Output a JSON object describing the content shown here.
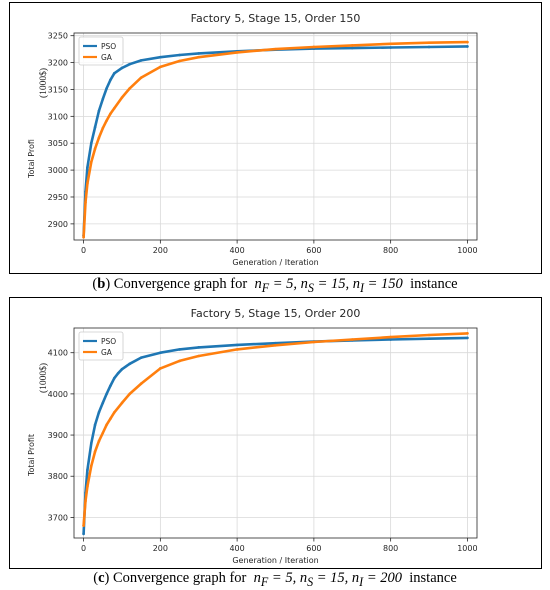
{
  "colors": {
    "pso": "#1f77b4",
    "ga": "#ff7f0e",
    "grid": "#d9d9d9",
    "axis": "#262626"
  },
  "captions": [
    {
      "label": "(b)",
      "text": "Convergence graph for",
      "formula": "n_F = 5, n_S = 15, n_I = 150",
      "suffix": "instance"
    },
    {
      "label": "(c)",
      "text": "Convergence graph for",
      "formula": "n_F = 5, n_S = 15, n_I = 200",
      "suffix": "instance"
    }
  ],
  "chart_data": [
    {
      "type": "line",
      "title": "Factory 5, Stage 15, Order 150",
      "xlabel": "Generation / Iteration",
      "ylabel": "Total Profi",
      "ylabel_unit": "(1000$)",
      "xlim": [
        -25,
        1025
      ],
      "ylim": [
        2870,
        3255
      ],
      "xticks": [
        0,
        200,
        400,
        600,
        800,
        1000
      ],
      "yticks": [
        2900,
        2950,
        3000,
        3050,
        3100,
        3150,
        3200,
        3250
      ],
      "grid": true,
      "legend": "top-left",
      "series": [
        {
          "name": "PSO",
          "color": "#1f77b4",
          "x": [
            0,
            5,
            10,
            20,
            30,
            40,
            50,
            60,
            70,
            80,
            100,
            120,
            150,
            200,
            250,
            300,
            400,
            500,
            600,
            700,
            800,
            900,
            1000
          ],
          "y": [
            2878,
            2960,
            3005,
            3050,
            3080,
            3110,
            3132,
            3152,
            3168,
            3180,
            3190,
            3197,
            3204,
            3210,
            3214,
            3217,
            3221,
            3224,
            3226,
            3227,
            3228,
            3229,
            3230
          ]
        },
        {
          "name": "GA",
          "color": "#ff7f0e",
          "x": [
            0,
            5,
            10,
            20,
            30,
            40,
            50,
            60,
            70,
            80,
            100,
            120,
            150,
            200,
            250,
            300,
            400,
            500,
            600,
            700,
            800,
            900,
            1000
          ],
          "y": [
            2875,
            2940,
            2975,
            3015,
            3040,
            3060,
            3078,
            3092,
            3105,
            3115,
            3135,
            3152,
            3172,
            3192,
            3203,
            3210,
            3219,
            3225,
            3229,
            3232,
            3235,
            3237,
            3238
          ]
        }
      ]
    },
    {
      "type": "line",
      "title": "Factory 5, Stage 15, Order 200",
      "xlabel": "Generation / Iteration",
      "ylabel": "Total Profit",
      "ylabel_unit": "(1000$)",
      "xlim": [
        -25,
        1025
      ],
      "ylim": [
        3650,
        4160
      ],
      "xticks": [
        0,
        200,
        400,
        600,
        800,
        1000
      ],
      "yticks": [
        3700,
        3800,
        3900,
        4000,
        4100
      ],
      "grid": true,
      "legend": "top-left",
      "series": [
        {
          "name": "PSO",
          "color": "#1f77b4",
          "x": [
            0,
            5,
            10,
            20,
            30,
            40,
            50,
            60,
            70,
            80,
            90,
            100,
            120,
            150,
            200,
            250,
            300,
            400,
            500,
            600,
            700,
            800,
            900,
            1000
          ],
          "y": [
            3660,
            3760,
            3815,
            3880,
            3925,
            3955,
            3978,
            4000,
            4020,
            4038,
            4050,
            4060,
            4073,
            4088,
            4100,
            4108,
            4113,
            4119,
            4123,
            4127,
            4130,
            4132,
            4134,
            4136
          ]
        },
        {
          "name": "GA",
          "color": "#ff7f0e",
          "x": [
            0,
            5,
            10,
            20,
            30,
            40,
            50,
            60,
            70,
            80,
            100,
            120,
            150,
            200,
            250,
            300,
            400,
            500,
            600,
            700,
            800,
            900,
            1000
          ],
          "y": [
            3680,
            3740,
            3775,
            3825,
            3860,
            3885,
            3905,
            3925,
            3940,
            3955,
            3978,
            4000,
            4025,
            4062,
            4080,
            4092,
            4108,
            4118,
            4126,
            4132,
            4138,
            4143,
            4147
          ]
        }
      ]
    }
  ]
}
